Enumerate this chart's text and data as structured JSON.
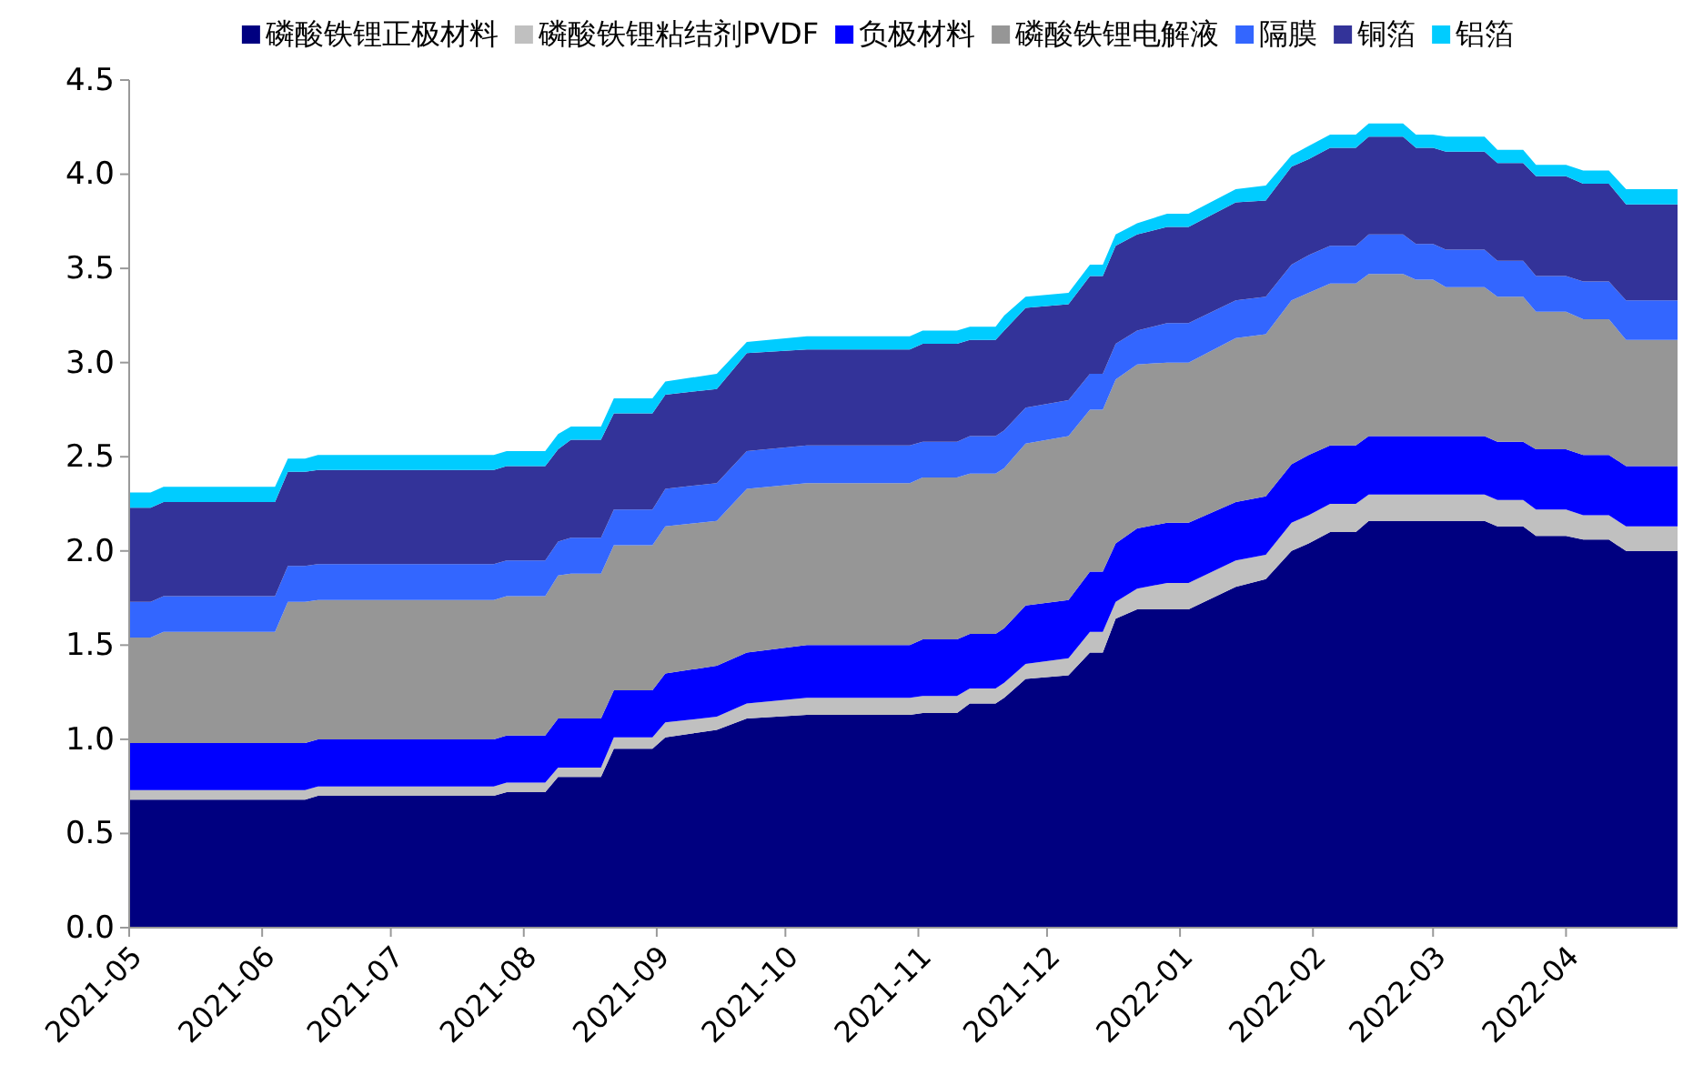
{
  "chart_data": {
    "type": "area",
    "stacked": true,
    "legend": "top",
    "grid": false,
    "x": [
      "2021-05-01",
      "2021-05-06",
      "2021-05-09",
      "2021-06-04",
      "2021-06-07",
      "2021-06-11",
      "2021-06-14",
      "2021-07-25",
      "2021-07-28",
      "2021-08-06",
      "2021-08-09",
      "2021-08-12",
      "2021-08-19",
      "2021-08-22",
      "2021-08-31",
      "2021-09-03",
      "2021-09-15",
      "2021-09-22",
      "2021-10-06",
      "2021-10-30",
      "2021-11-02",
      "2021-11-10",
      "2021-11-13",
      "2021-11-19",
      "2021-11-21",
      "2021-11-26",
      "2021-12-06",
      "2021-12-11",
      "2021-12-14",
      "2021-12-17",
      "2021-12-22",
      "2021-12-29",
      "2022-01-03",
      "2022-01-14",
      "2022-01-21",
      "2022-01-27",
      "2022-01-31",
      "2022-02-05",
      "2022-02-11",
      "2022-02-14",
      "2022-02-22",
      "2022-02-25",
      "2022-03-01",
      "2022-03-04",
      "2022-03-13",
      "2022-03-16",
      "2022-03-22",
      "2022-03-25",
      "2022-04-01",
      "2022-04-05",
      "2022-04-11",
      "2022-04-15",
      "2022-04-27"
    ],
    "series": [
      {
        "name": "磷酸铁锂正极材料",
        "color": "#000080",
        "values": [
          0.68,
          0.68,
          0.68,
          0.68,
          0.68,
          0.68,
          0.7,
          0.7,
          0.72,
          0.72,
          0.8,
          0.8,
          0.8,
          0.95,
          0.95,
          1.01,
          1.05,
          1.11,
          1.13,
          1.13,
          1.14,
          1.14,
          1.19,
          1.19,
          1.22,
          1.32,
          1.34,
          1.46,
          1.46,
          1.64,
          1.69,
          1.69,
          1.69,
          1.81,
          1.85,
          2.0,
          2.04,
          2.1,
          2.1,
          2.16,
          2.16,
          2.16,
          2.16,
          2.16,
          2.16,
          2.13,
          2.13,
          2.08,
          2.08,
          2.06,
          2.06,
          2.0,
          2.0
        ]
      },
      {
        "name": "磷酸铁锂粘结剂PVDF",
        "color": "#c0c0c0",
        "values": [
          0.05,
          0.05,
          0.05,
          0.05,
          0.05,
          0.05,
          0.05,
          0.05,
          0.05,
          0.05,
          0.05,
          0.05,
          0.05,
          0.06,
          0.06,
          0.08,
          0.07,
          0.08,
          0.09,
          0.09,
          0.09,
          0.09,
          0.08,
          0.08,
          0.08,
          0.08,
          0.09,
          0.11,
          0.11,
          0.09,
          0.11,
          0.14,
          0.14,
          0.14,
          0.13,
          0.15,
          0.15,
          0.15,
          0.15,
          0.14,
          0.14,
          0.14,
          0.14,
          0.14,
          0.14,
          0.14,
          0.14,
          0.14,
          0.14,
          0.13,
          0.13,
          0.13,
          0.13
        ]
      },
      {
        "name": "负极材料",
        "color": "#0000ff",
        "values": [
          0.25,
          0.25,
          0.25,
          0.25,
          0.25,
          0.25,
          0.25,
          0.25,
          0.25,
          0.25,
          0.26,
          0.26,
          0.26,
          0.25,
          0.25,
          0.26,
          0.27,
          0.27,
          0.28,
          0.28,
          0.3,
          0.3,
          0.29,
          0.29,
          0.29,
          0.31,
          0.31,
          0.32,
          0.32,
          0.31,
          0.32,
          0.32,
          0.32,
          0.31,
          0.31,
          0.31,
          0.32,
          0.31,
          0.31,
          0.31,
          0.31,
          0.31,
          0.31,
          0.31,
          0.31,
          0.31,
          0.31,
          0.32,
          0.32,
          0.32,
          0.32,
          0.32,
          0.32
        ]
      },
      {
        "name": "磷酸铁锂电解液",
        "color": "#969696",
        "values": [
          0.56,
          0.56,
          0.59,
          0.59,
          0.75,
          0.75,
          0.74,
          0.74,
          0.74,
          0.74,
          0.76,
          0.77,
          0.77,
          0.77,
          0.77,
          0.78,
          0.77,
          0.87,
          0.86,
          0.86,
          0.86,
          0.86,
          0.85,
          0.85,
          0.85,
          0.86,
          0.87,
          0.86,
          0.86,
          0.87,
          0.87,
          0.85,
          0.85,
          0.87,
          0.86,
          0.87,
          0.86,
          0.86,
          0.86,
          0.86,
          0.86,
          0.83,
          0.83,
          0.79,
          0.79,
          0.77,
          0.77,
          0.73,
          0.73,
          0.72,
          0.72,
          0.67,
          0.67
        ]
      },
      {
        "name": "隔膜",
        "color": "#3366ff",
        "values": [
          0.19,
          0.19,
          0.19,
          0.19,
          0.19,
          0.19,
          0.19,
          0.19,
          0.19,
          0.19,
          0.18,
          0.19,
          0.19,
          0.19,
          0.19,
          0.2,
          0.2,
          0.2,
          0.2,
          0.2,
          0.19,
          0.19,
          0.2,
          0.2,
          0.2,
          0.19,
          0.19,
          0.19,
          0.19,
          0.19,
          0.18,
          0.21,
          0.21,
          0.2,
          0.2,
          0.19,
          0.2,
          0.2,
          0.2,
          0.21,
          0.21,
          0.19,
          0.19,
          0.2,
          0.2,
          0.19,
          0.19,
          0.19,
          0.19,
          0.2,
          0.2,
          0.21,
          0.21
        ]
      },
      {
        "name": "铜箔",
        "color": "#333399",
        "values": [
          0.5,
          0.5,
          0.5,
          0.5,
          0.5,
          0.5,
          0.5,
          0.5,
          0.5,
          0.5,
          0.49,
          0.52,
          0.52,
          0.51,
          0.51,
          0.5,
          0.5,
          0.52,
          0.51,
          0.51,
          0.52,
          0.52,
          0.51,
          0.51,
          0.53,
          0.53,
          0.51,
          0.52,
          0.52,
          0.52,
          0.51,
          0.51,
          0.51,
          0.52,
          0.51,
          0.52,
          0.51,
          0.52,
          0.52,
          0.52,
          0.52,
          0.51,
          0.51,
          0.52,
          0.52,
          0.52,
          0.52,
          0.53,
          0.53,
          0.52,
          0.52,
          0.51,
          0.51
        ]
      },
      {
        "name": "铝箔",
        "color": "#00ccff",
        "values": [
          0.08,
          0.08,
          0.08,
          0.08,
          0.07,
          0.07,
          0.08,
          0.08,
          0.08,
          0.08,
          0.08,
          0.07,
          0.07,
          0.08,
          0.08,
          0.07,
          0.08,
          0.06,
          0.07,
          0.07,
          0.07,
          0.07,
          0.07,
          0.07,
          0.08,
          0.06,
          0.06,
          0.06,
          0.06,
          0.06,
          0.06,
          0.07,
          0.07,
          0.07,
          0.08,
          0.06,
          0.07,
          0.07,
          0.07,
          0.07,
          0.07,
          0.07,
          0.07,
          0.08,
          0.08,
          0.07,
          0.07,
          0.06,
          0.06,
          0.07,
          0.07,
          0.08,
          0.08
        ]
      }
    ],
    "xlim": [
      "2021-05-01",
      "2022-04-27"
    ],
    "xticks": [
      "2021-05",
      "2021-06",
      "2021-07",
      "2021-08",
      "2021-09",
      "2021-10",
      "2021-11",
      "2021-12",
      "2022-01",
      "2022-02",
      "2022-03",
      "2022-04"
    ],
    "ylim": [
      0,
      4.5
    ],
    "yticks": [
      {
        "value": 0,
        "label": "0.0"
      },
      {
        "value": 0.5,
        "label": "0.5"
      },
      {
        "value": 1,
        "label": "1.0"
      },
      {
        "value": 1.5,
        "label": "1.5"
      },
      {
        "value": 2,
        "label": "2.0"
      },
      {
        "value": 2.5,
        "label": "2.5"
      },
      {
        "value": 3,
        "label": "3.0"
      },
      {
        "value": 3.5,
        "label": "3.5"
      },
      {
        "value": 4,
        "label": "4.0"
      },
      {
        "value": 4.5,
        "label": "4.5"
      }
    ]
  }
}
